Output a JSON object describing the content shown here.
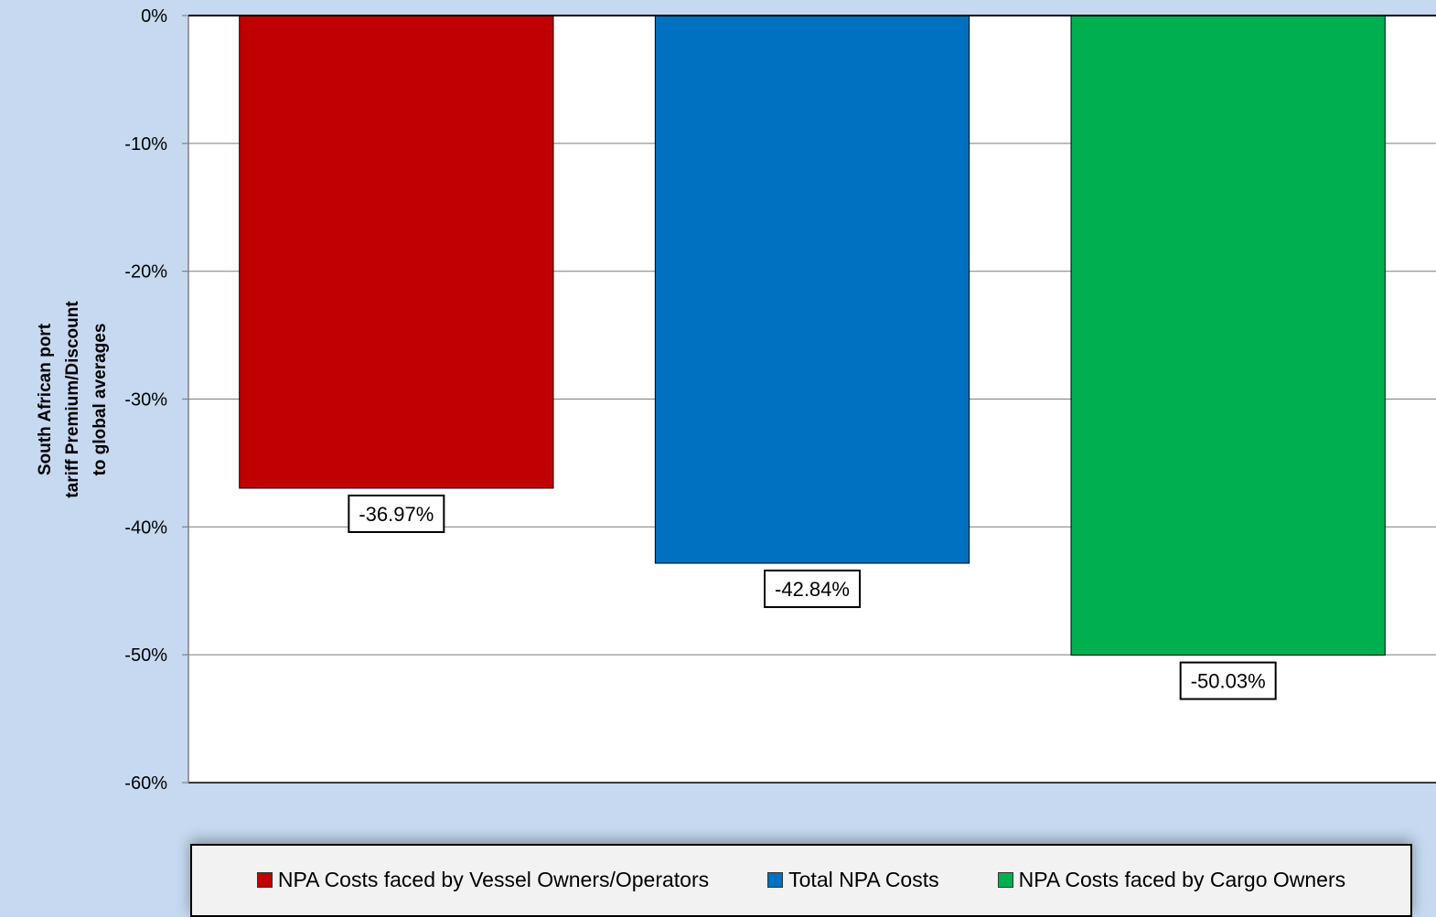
{
  "chart_data": {
    "type": "bar",
    "title": "",
    "xlabel": "",
    "ylabel": "South African port tariff Premium/Discount to global averages",
    "ylabel_lines": [
      "South African port",
      "tariff Premium/Discount",
      "to global averages"
    ],
    "ylim": [
      -60,
      0
    ],
    "yticks": [
      0,
      -10,
      -20,
      -30,
      -40,
      -50,
      -60
    ],
    "ytick_labels": [
      "0%",
      "-10%",
      "-20%",
      "-30%",
      "-40%",
      "-50%",
      "-60%"
    ],
    "grid": true,
    "legend_position": "bottom",
    "series": [
      {
        "name": "NPA Costs faced by Vessel Owners/Operators",
        "value": -36.97,
        "label": "-36.97%",
        "color": "#c00000"
      },
      {
        "name": "Total NPA Costs",
        "value": -42.84,
        "label": "-42.84%",
        "color": "#0070c0"
      },
      {
        "name": "NPA Costs faced by Cargo Owners",
        "value": -50.03,
        "label": "-50.03%",
        "color": "#00b050"
      }
    ]
  }
}
